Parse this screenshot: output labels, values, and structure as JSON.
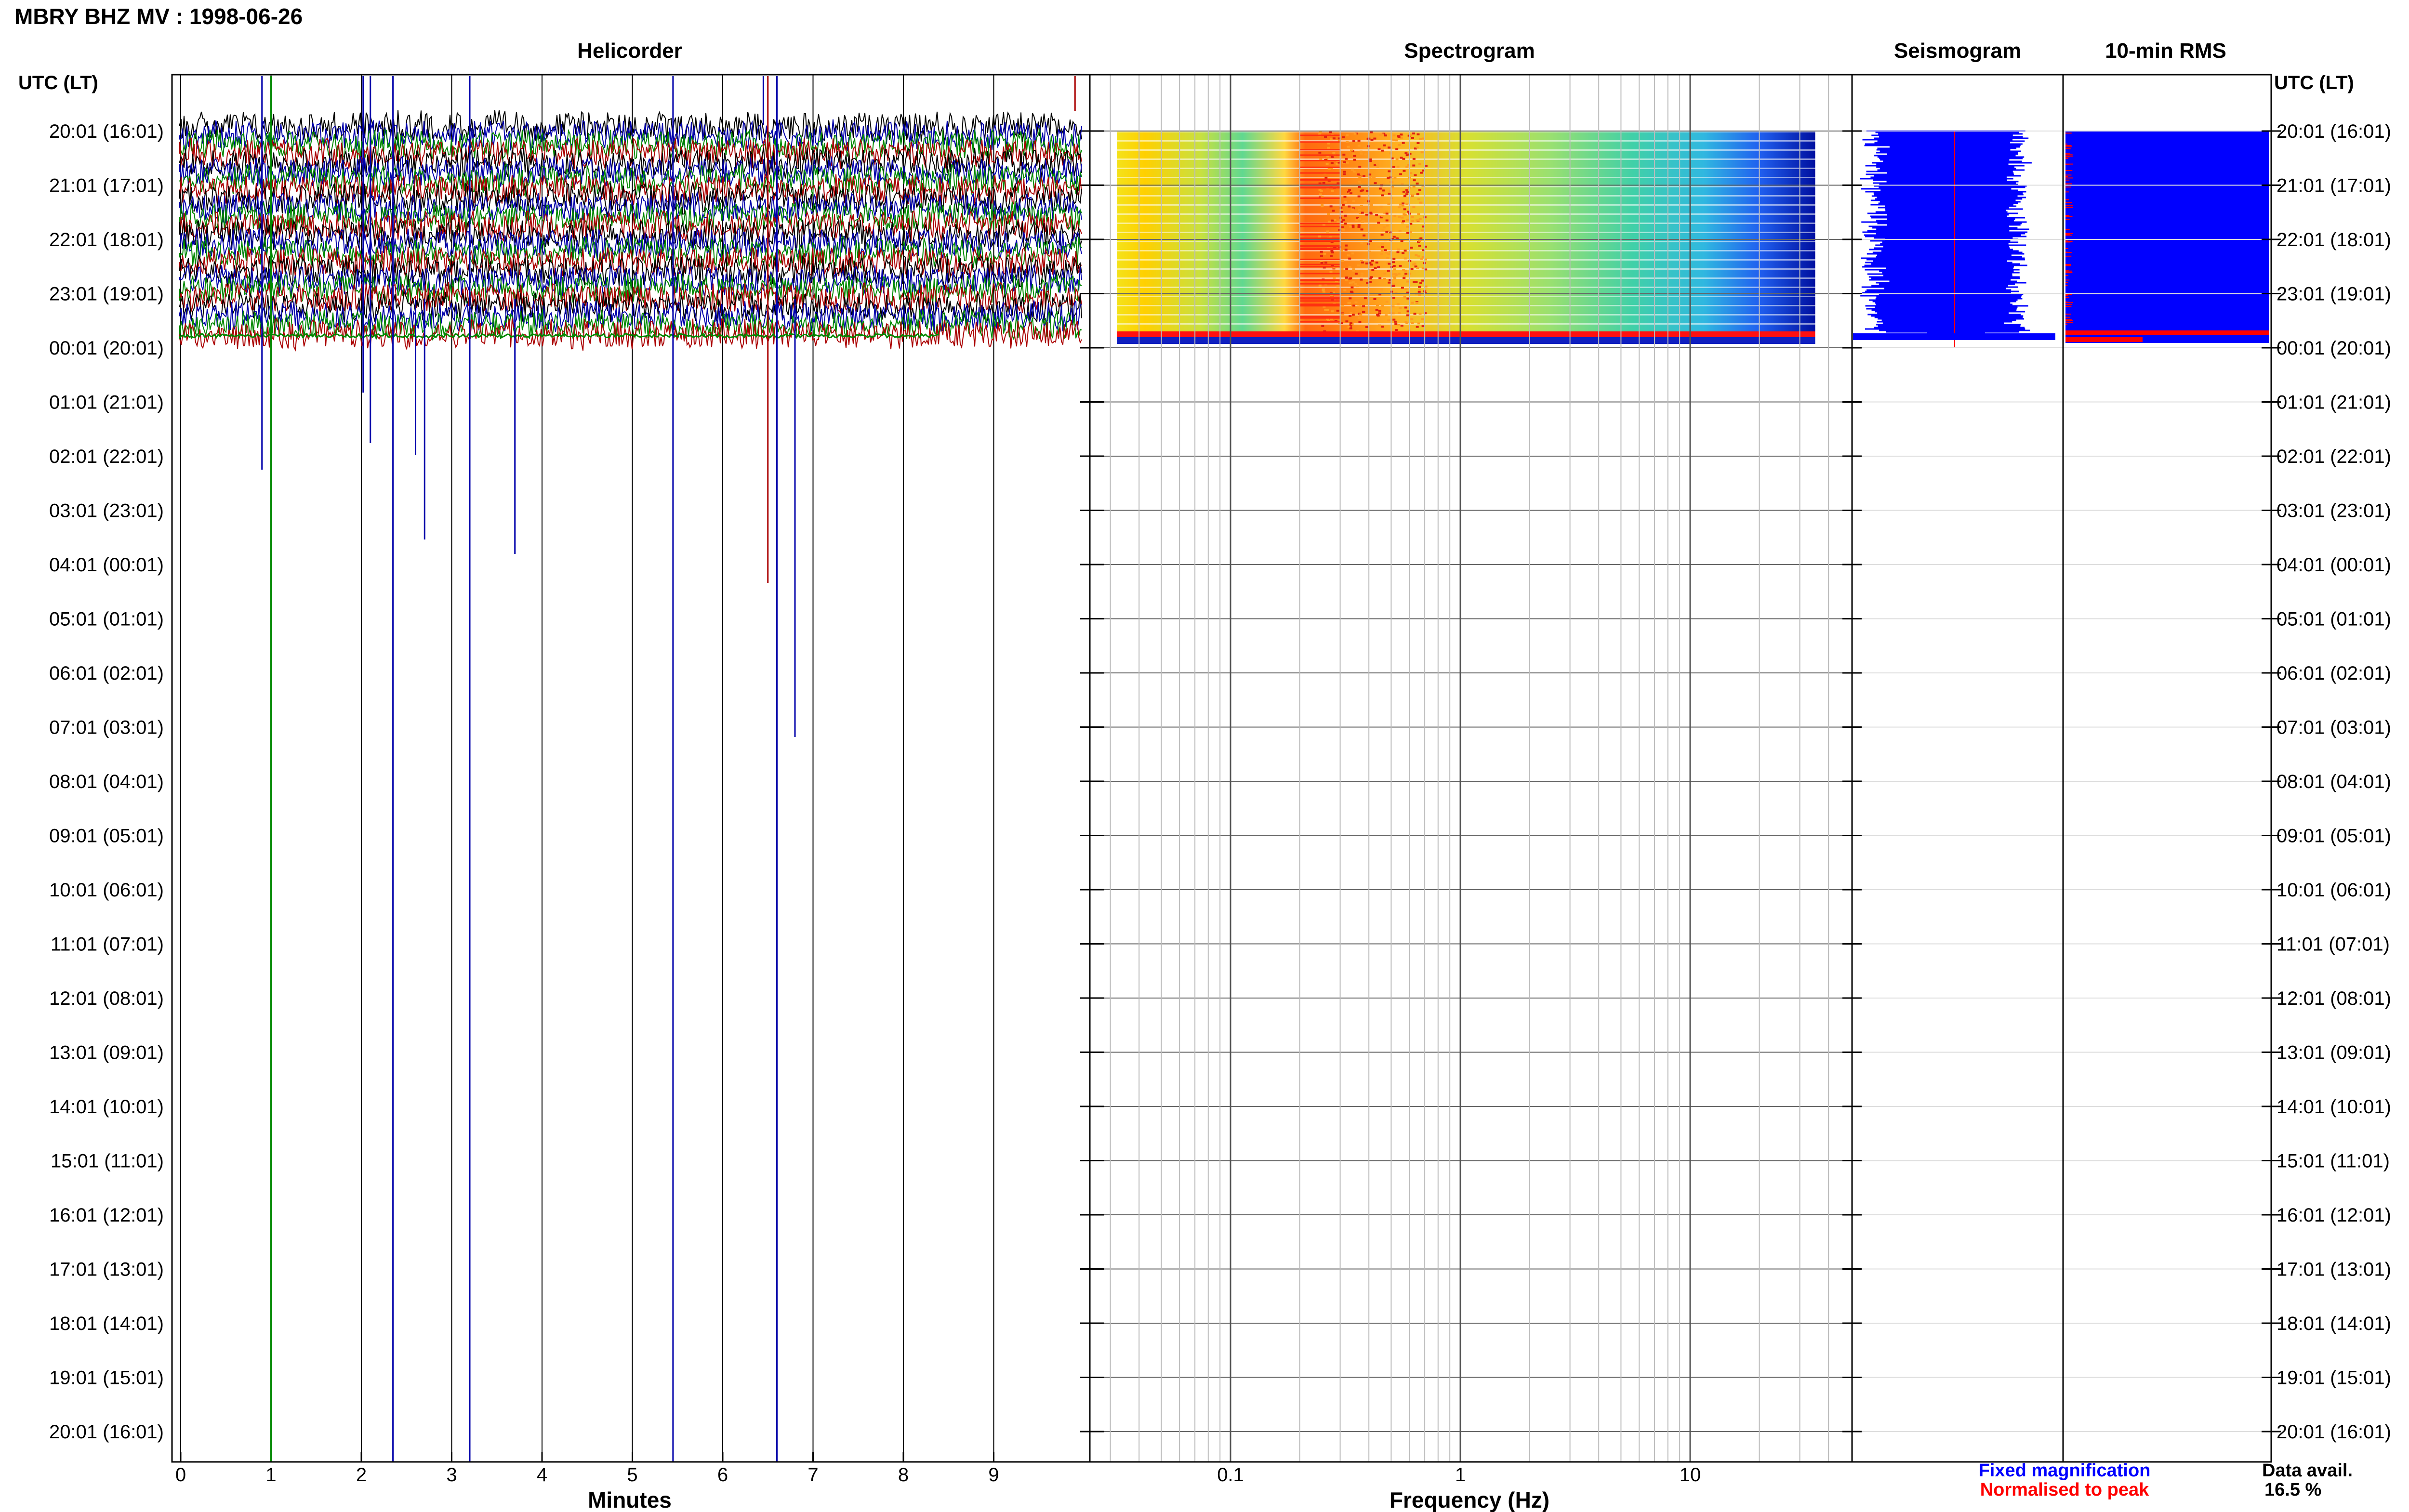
{
  "title": "MBRY BHZ MV : 1998-06-26",
  "panels": {
    "helicorder": "Helicorder",
    "spectrogram": "Spectrogram",
    "seismogram": "Seismogram",
    "rms": "10-min RMS"
  },
  "axis_header_left": "UTC (LT)",
  "axis_header_right": "UTC (LT)",
  "time_rows": [
    "20:01 (16:01)",
    "21:01 (17:01)",
    "22:01 (18:01)",
    "23:01 (19:01)",
    "00:01 (20:01)",
    "01:01 (21:01)",
    "02:01 (22:01)",
    "03:01 (23:01)",
    "04:01 (00:01)",
    "05:01 (01:01)",
    "06:01 (02:01)",
    "07:01 (03:01)",
    "08:01 (04:01)",
    "09:01 (05:01)",
    "10:01 (06:01)",
    "11:01 (07:01)",
    "12:01 (08:01)",
    "13:01 (09:01)",
    "14:01 (10:01)",
    "15:01 (11:01)",
    "16:01 (12:01)",
    "17:01 (13:01)",
    "18:01 (14:01)",
    "19:01 (15:01)",
    "20:01 (16:01)"
  ],
  "x_labels": {
    "minutes": "Minutes",
    "frequency": "Frequency (Hz)"
  },
  "minute_ticks": [
    "0",
    "1",
    "2",
    "3",
    "4",
    "5",
    "6",
    "7",
    "8",
    "9"
  ],
  "freq_ticks": [
    "0.1",
    "1",
    "10"
  ],
  "legend": {
    "fixed": "Fixed magnification",
    "normalised": "Normalised to peak",
    "fixed_color": "#0000ff",
    "normalised_color": "#ff0000"
  },
  "data_avail": {
    "label": "Data avail.",
    "value": "16.5 %"
  },
  "colors": {
    "trace_colors": [
      "#000000",
      "#0000aa",
      "#008800",
      "#aa0000"
    ]
  },
  "chart_data": {
    "type": "heatmap",
    "title": "MBRY BHZ MV : 1998-06-26",
    "helicorder": {
      "xlabel": "Minutes",
      "xlim": [
        0,
        10
      ],
      "ylabel": "UTC (LT)",
      "rows": 24,
      "rows_with_data": 4,
      "spike_minutes": [
        0.9,
        2.05,
        2.35,
        2.6,
        3.2,
        3.7,
        6.55,
        6.65,
        6.8
      ]
    },
    "spectrogram": {
      "xlabel": "Frequency (Hz)",
      "xscale": "log",
      "xlim": [
        0.03,
        40
      ],
      "peak_band_hz": [
        0.25,
        0.6
      ]
    },
    "seismogram": {
      "series": [
        {
          "name": "Fixed magnification",
          "color": "#0000ff"
        },
        {
          "name": "Normalised to peak",
          "color": "#ff0000"
        }
      ]
    },
    "data_availability_percent": 16.5
  }
}
